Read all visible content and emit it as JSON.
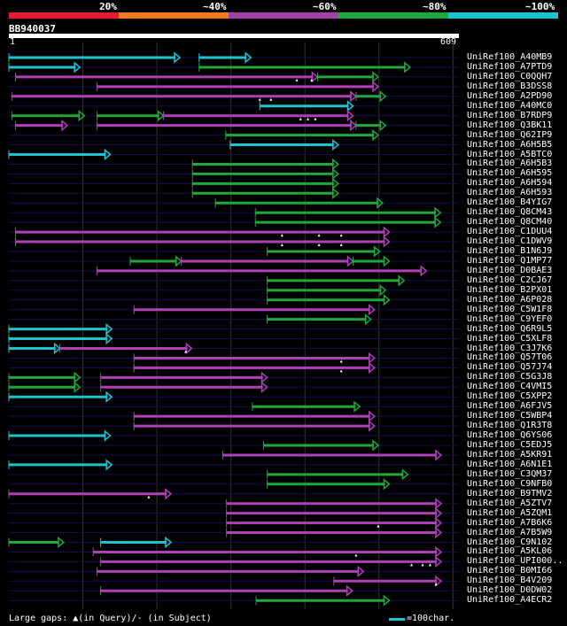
{
  "legend": {
    "labels": [
      "20%",
      "~40%",
      "~60%",
      "~80%",
      "~100%"
    ],
    "colors": [
      "#e6192e",
      "#f07a1e",
      "#a23fa8",
      "#20a83c",
      "#1cc4cf"
    ]
  },
  "query": {
    "name": "BB940037",
    "start": "1",
    "end": "609",
    "length": 609
  },
  "colors": {
    "cyan": "#1cc4cf",
    "green": "#20a83c",
    "magenta": "#b040b8",
    "gap_marker": "#ffffff",
    "grid": "#333333",
    "row_line": "#101050"
  },
  "hits": [
    {
      "id": "UniRef100_A40MB9",
      "segs": [
        [
          1,
          232,
          "cyan"
        ],
        [
          258,
          328,
          "cyan"
        ]
      ],
      "gaps": []
    },
    {
      "id": "UniRef100_A7PTD9",
      "segs": [
        [
          1,
          97,
          "cyan"
        ],
        [
          258,
          543,
          "green"
        ]
      ],
      "gaps": []
    },
    {
      "id": "UniRef100_C0QQH7",
      "segs": [
        [
          10,
          418,
          "magenta"
        ],
        [
          418,
          500,
          "green"
        ]
      ],
      "gaps": [
        390,
        410
      ]
    },
    {
      "id": "UniRef100_B3DSS8",
      "segs": [
        [
          120,
          500,
          "magenta"
        ]
      ],
      "gaps": []
    },
    {
      "id": "UniRef100_A2PD90",
      "segs": [
        [
          5,
          470,
          "magenta"
        ],
        [
          470,
          510,
          "green"
        ]
      ],
      "gaps": [
        340,
        355
      ]
    },
    {
      "id": "UniRef100_A40MC0",
      "segs": [
        [
          340,
          466,
          "cyan"
        ]
      ],
      "gaps": []
    },
    {
      "id": "UniRef100_B7RDP9",
      "segs": [
        [
          5,
          103,
          "green"
        ],
        [
          120,
          210,
          "green"
        ],
        [
          210,
          466,
          "magenta"
        ]
      ],
      "gaps": [
        395,
        405,
        415
      ]
    },
    {
      "id": "UniRef100_Q3BK11",
      "segs": [
        [
          10,
          80,
          "magenta"
        ],
        [
          120,
          470,
          "magenta"
        ],
        [
          470,
          510,
          "green"
        ]
      ],
      "gaps": []
    },
    {
      "id": "UniRef100_Q62IP9",
      "segs": [
        [
          294,
          500,
          "green"
        ]
      ],
      "gaps": []
    },
    {
      "id": "UniRef100_A6H5B5",
      "segs": [
        [
          300,
          446,
          "cyan"
        ]
      ],
      "gaps": []
    },
    {
      "id": "UniRef100_A5BTC0",
      "segs": [
        [
          1,
          138,
          "cyan"
        ]
      ],
      "gaps": []
    },
    {
      "id": "UniRef100_A6H5B3",
      "segs": [
        [
          249,
          446,
          "green"
        ]
      ],
      "gaps": []
    },
    {
      "id": "UniRef100_A6H595",
      "segs": [
        [
          249,
          446,
          "green"
        ]
      ],
      "gaps": []
    },
    {
      "id": "UniRef100_A6H594",
      "segs": [
        [
          249,
          446,
          "green"
        ]
      ],
      "gaps": []
    },
    {
      "id": "UniRef100_A6H593",
      "segs": [
        [
          249,
          446,
          "green"
        ]
      ],
      "gaps": []
    },
    {
      "id": "UniRef100_B4YIG7",
      "segs": [
        [
          280,
          506,
          "green"
        ]
      ],
      "gaps": []
    },
    {
      "id": "UniRef100_Q8CM43",
      "segs": [
        [
          334,
          584,
          "green"
        ]
      ],
      "gaps": []
    },
    {
      "id": "UniRef100_Q8CM40",
      "segs": [
        [
          334,
          584,
          "green"
        ]
      ],
      "gaps": []
    },
    {
      "id": "UniRef100_C1DUU4",
      "segs": [
        [
          10,
          515,
          "magenta"
        ]
      ],
      "gaps": [
        370,
        420,
        450
      ]
    },
    {
      "id": "UniRef100_C1DWV9",
      "segs": [
        [
          10,
          515,
          "magenta"
        ]
      ],
      "gaps": [
        370,
        420,
        450
      ]
    },
    {
      "id": "UniRef100_B1N6J9",
      "segs": [
        [
          350,
          502,
          "green"
        ]
      ],
      "gaps": []
    },
    {
      "id": "UniRef100_Q1MP77",
      "segs": [
        [
          165,
          234,
          "green"
        ],
        [
          234,
          466,
          "magenta"
        ],
        [
          466,
          515,
          "green"
        ]
      ],
      "gaps": []
    },
    {
      "id": "UniRef100_D0BAE3",
      "segs": [
        [
          120,
          565,
          "magenta"
        ]
      ],
      "gaps": []
    },
    {
      "id": "UniRef100_C2CJ67",
      "segs": [
        [
          350,
          535,
          "green"
        ]
      ],
      "gaps": []
    },
    {
      "id": "UniRef100_B2PX01",
      "segs": [
        [
          350,
          510,
          "green"
        ]
      ],
      "gaps": []
    },
    {
      "id": "UniRef100_A6P028",
      "segs": [
        [
          350,
          515,
          "green"
        ]
      ],
      "gaps": []
    },
    {
      "id": "UniRef100_C5W1F8",
      "segs": [
        [
          170,
          495,
          "magenta"
        ]
      ],
      "gaps": []
    },
    {
      "id": "UniRef100_C9YEF0",
      "segs": [
        [
          350,
          490,
          "green"
        ]
      ],
      "gaps": []
    },
    {
      "id": "UniRef100_Q6R9L5",
      "segs": [
        [
          1,
          140,
          "cyan"
        ]
      ],
      "gaps": []
    },
    {
      "id": "UniRef100_C5XLF8",
      "segs": [
        [
          1,
          140,
          "cyan"
        ]
      ],
      "gaps": []
    },
    {
      "id": "UniRef100_C3J7K6",
      "segs": [
        [
          1,
          70,
          "cyan"
        ],
        [
          70,
          248,
          "magenta"
        ]
      ],
      "gaps": [
        240
      ]
    },
    {
      "id": "UniRef100_Q57T06",
      "segs": [
        [
          170,
          495,
          "magenta"
        ]
      ],
      "gaps": [
        450
      ]
    },
    {
      "id": "UniRef100_Q57J74",
      "segs": [
        [
          170,
          495,
          "magenta"
        ]
      ],
      "gaps": [
        450
      ]
    },
    {
      "id": "UniRef100_C5G3J8",
      "segs": [
        [
          1,
          97,
          "green"
        ],
        [
          125,
          350,
          "magenta"
        ]
      ],
      "gaps": []
    },
    {
      "id": "UniRef100_C4VMI5",
      "segs": [
        [
          1,
          97,
          "green"
        ],
        [
          125,
          350,
          "magenta"
        ]
      ],
      "gaps": []
    },
    {
      "id": "UniRef100_C5XPP2",
      "segs": [
        [
          1,
          140,
          "cyan"
        ]
      ],
      "gaps": []
    },
    {
      "id": "UniRef100_A6FJV5",
      "segs": [
        [
          330,
          475,
          "green"
        ]
      ],
      "gaps": []
    },
    {
      "id": "UniRef100_C5WBP4",
      "segs": [
        [
          170,
          495,
          "magenta"
        ]
      ],
      "gaps": []
    },
    {
      "id": "UniRef100_Q1R3T8",
      "segs": [
        [
          170,
          495,
          "magenta"
        ]
      ],
      "gaps": []
    },
    {
      "id": "UniRef100_Q6YS06",
      "segs": [
        [
          1,
          138,
          "cyan"
        ]
      ],
      "gaps": []
    },
    {
      "id": "UniRef100_C5EDJ5",
      "segs": [
        [
          345,
          500,
          "green"
        ]
      ],
      "gaps": []
    },
    {
      "id": "UniRef100_A5KR91",
      "segs": [
        [
          290,
          585,
          "magenta"
        ]
      ],
      "gaps": []
    },
    {
      "id": "UniRef100_A6N1E1",
      "segs": [
        [
          1,
          140,
          "cyan"
        ]
      ],
      "gaps": []
    },
    {
      "id": "UniRef100_C3QM37",
      "segs": [
        [
          350,
          540,
          "green"
        ]
      ],
      "gaps": []
    },
    {
      "id": "UniRef100_C9NFB0",
      "segs": [
        [
          350,
          515,
          "green"
        ]
      ],
      "gaps": []
    },
    {
      "id": "UniRef100_B9TMV2",
      "segs": [
        [
          1,
          220,
          "magenta"
        ]
      ],
      "gaps": [
        190
      ]
    },
    {
      "id": "UniRef100_A5ZTV7",
      "segs": [
        [
          295,
          585,
          "magenta"
        ]
      ],
      "gaps": []
    },
    {
      "id": "UniRef100_A5ZQM1",
      "segs": [
        [
          295,
          585,
          "magenta"
        ]
      ],
      "gaps": []
    },
    {
      "id": "UniRef100_A7B6K6",
      "segs": [
        [
          295,
          585,
          "magenta"
        ]
      ],
      "gaps": [
        500
      ]
    },
    {
      "id": "UniRef100_A7B5W9",
      "segs": [
        [
          295,
          585,
          "magenta"
        ]
      ],
      "gaps": []
    },
    {
      "id": "UniRef100_C9N102",
      "segs": [
        [
          1,
          75,
          "green"
        ],
        [
          125,
          220,
          "cyan"
        ]
      ],
      "gaps": []
    },
    {
      "id": "UniRef100_A5KL06",
      "segs": [
        [
          115,
          585,
          "magenta"
        ]
      ],
      "gaps": [
        470
      ]
    },
    {
      "id": "UniRef100_UPI000..",
      "segs": [
        [
          125,
          585,
          "magenta"
        ]
      ],
      "gaps": [
        545,
        560,
        570
      ]
    },
    {
      "id": "UniRef100_B0MI66",
      "segs": [
        [
          120,
          480,
          "magenta"
        ]
      ],
      "gaps": []
    },
    {
      "id": "UniRef100_B4V209",
      "segs": [
        [
          440,
          585,
          "magenta"
        ]
      ],
      "gaps": [
        578
      ]
    },
    {
      "id": "UniRef100_D0DW02",
      "segs": [
        [
          125,
          465,
          "magenta"
        ]
      ],
      "gaps": []
    },
    {
      "id": "UniRef100_A4ECR2",
      "segs": [
        [
          335,
          515,
          "green"
        ]
      ],
      "gaps": []
    }
  ],
  "footer": {
    "label": "Large gaps: ▲(in Query)/- (in Subject)",
    "scale_text": "=100char."
  }
}
